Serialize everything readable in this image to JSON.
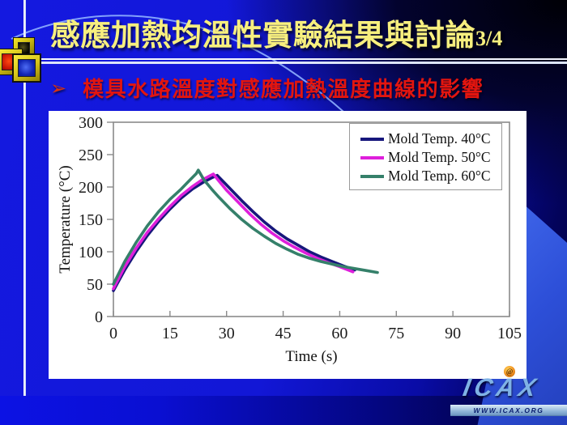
{
  "slide": {
    "title": "感應加熱均溫性實驗結果與討論",
    "title_suffix": "3/4",
    "bullet_glyph": "➢",
    "bullet": "模具水路溫度對感應加熱溫度曲線的影響"
  },
  "palette": {
    "title_color": "#f7ef7e",
    "bullet_color": "#e2150f",
    "background_blue": "#1217d6",
    "panel_color": "#ffffff"
  },
  "logo": {
    "text": "ICAX",
    "at_glyph": "@",
    "banner": "WWW.ICAX.ORG"
  },
  "chart_data": {
    "type": "line",
    "title": "",
    "xlabel": "Time (s)",
    "ylabel": "Temperature (°C)",
    "xlim": [
      0,
      105
    ],
    "ylim": [
      0,
      300
    ],
    "xticks": [
      0,
      15,
      30,
      45,
      60,
      75,
      90,
      105
    ],
    "yticks": [
      0,
      50,
      100,
      150,
      200,
      250,
      300
    ],
    "grid": false,
    "legend_position": "top-right",
    "series": [
      {
        "name": "Mold Temp. 40°C",
        "color": "#17177c",
        "peak": {
          "time_s": 27.5,
          "temp_c": 218
        },
        "points": [
          [
            0,
            40
          ],
          [
            3,
            72
          ],
          [
            6,
            100
          ],
          [
            9,
            125
          ],
          [
            12,
            147
          ],
          [
            15,
            166
          ],
          [
            18,
            183
          ],
          [
            21,
            197
          ],
          [
            24,
            208
          ],
          [
            26,
            214
          ],
          [
            27.5,
            218
          ],
          [
            29,
            209
          ],
          [
            31,
            197
          ],
          [
            34,
            179
          ],
          [
            37,
            162
          ],
          [
            40,
            146
          ],
          [
            43,
            132
          ],
          [
            46,
            120
          ],
          [
            49,
            110
          ],
          [
            52,
            100
          ],
          [
            55,
            92
          ],
          [
            58,
            85
          ],
          [
            61,
            78
          ],
          [
            64,
            72
          ]
        ]
      },
      {
        "name": "Mold Temp. 50°C",
        "color": "#de1fdb",
        "peak": {
          "time_s": 26.5,
          "temp_c": 220
        },
        "points": [
          [
            0,
            43
          ],
          [
            3,
            77
          ],
          [
            6,
            105
          ],
          [
            9,
            130
          ],
          [
            12,
            151
          ],
          [
            15,
            170
          ],
          [
            18,
            187
          ],
          [
            21,
            201
          ],
          [
            23.5,
            211
          ],
          [
            25.5,
            217
          ],
          [
            26.5,
            220
          ],
          [
            28,
            209
          ],
          [
            30,
            195
          ],
          [
            33,
            177
          ],
          [
            36,
            159
          ],
          [
            39,
            143
          ],
          [
            42,
            129
          ],
          [
            45,
            117
          ],
          [
            48,
            107
          ],
          [
            51,
            98
          ],
          [
            54,
            90
          ],
          [
            57,
            83
          ],
          [
            60,
            77
          ],
          [
            63.5,
            69
          ]
        ]
      },
      {
        "name": "Mold Temp. 60°C",
        "color": "#35806a",
        "peak": {
          "time_s": 22.5,
          "temp_c": 226
        },
        "points": [
          [
            0,
            50
          ],
          [
            3,
            85
          ],
          [
            6,
            114
          ],
          [
            9,
            140
          ],
          [
            12,
            162
          ],
          [
            15,
            181
          ],
          [
            18,
            197
          ],
          [
            20,
            209
          ],
          [
            22,
            221
          ],
          [
            22.5,
            226
          ],
          [
            24,
            211
          ],
          [
            26,
            197
          ],
          [
            28,
            184
          ],
          [
            31,
            166
          ],
          [
            34,
            150
          ],
          [
            37,
            136
          ],
          [
            40,
            124
          ],
          [
            43,
            113
          ],
          [
            46,
            104
          ],
          [
            49,
            96
          ],
          [
            52,
            90
          ],
          [
            55,
            85
          ],
          [
            58,
            81
          ],
          [
            61,
            77
          ],
          [
            64,
            74
          ],
          [
            67,
            71
          ],
          [
            70,
            68
          ]
        ]
      }
    ]
  }
}
